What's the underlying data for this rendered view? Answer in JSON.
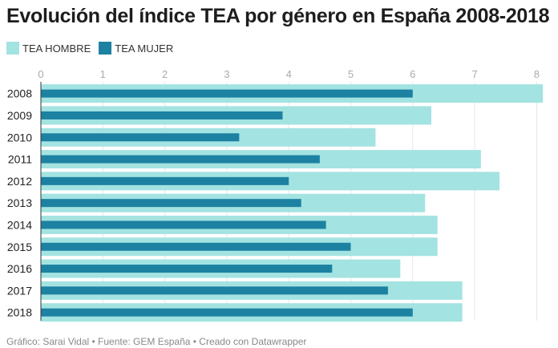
{
  "title": "Evolución del índice TEA por género en España 2008-2018",
  "footer": "Gráfico: Sarai Vidal • Fuente: GEM España • Creado con Datawrapper",
  "chart_data": {
    "type": "bar",
    "orientation": "horizontal",
    "title": "Evolución del índice TEA por género en España 2008-2018",
    "categories": [
      "2008",
      "2009",
      "2010",
      "2011",
      "2012",
      "2013",
      "2014",
      "2015",
      "2016",
      "2017",
      "2018"
    ],
    "series": [
      {
        "name": "TEA HOMBRE",
        "color": "#a3e3e1",
        "values": [
          8.1,
          6.3,
          5.4,
          7.1,
          7.4,
          6.2,
          6.4,
          6.4,
          5.8,
          6.8,
          6.8
        ]
      },
      {
        "name": "TEA MUJER",
        "color": "#1d81a2",
        "values": [
          6.0,
          3.9,
          3.2,
          4.5,
          4.0,
          4.2,
          4.6,
          5.0,
          4.7,
          5.6,
          6.0
        ]
      }
    ],
    "xlim": [
      0,
      8
    ],
    "xticks": [
      "0",
      "1",
      "2",
      "3",
      "4",
      "5",
      "6",
      "7",
      "8"
    ],
    "grid": true,
    "legend": "top-left"
  }
}
